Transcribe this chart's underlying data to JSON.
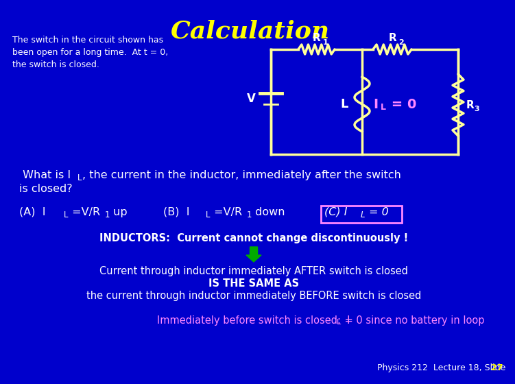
{
  "bg_color": "#0000CC",
  "title": "Calculation",
  "title_color": "#FFFF00",
  "text_white": "#FFFFFF",
  "text_yellow": "#FFFF00",
  "text_pink": "#FF88FF",
  "text_green": "#00AA00",
  "circuit_color": "#FFFF99",
  "circuit_lw": 2.5,
  "desc_line1": "The switch in the circuit shown has",
  "desc_line2": "been open for a long time.  At t = 0,",
  "desc_line3": "the switch is closed.",
  "slide_label": "Physics 212  Lecture 18, Slide ",
  "slide_num": "27"
}
